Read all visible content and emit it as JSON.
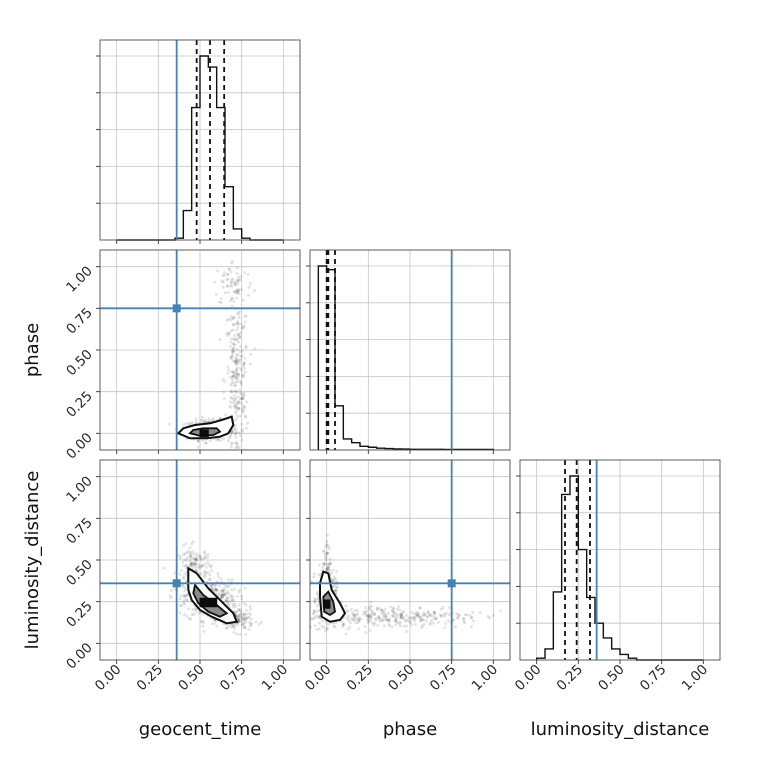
{
  "chart_data": {
    "type": "corner",
    "parameters": [
      "geocent_time",
      "phase",
      "luminosity_distance"
    ],
    "axis_range": [
      -0.1,
      1.1
    ],
    "tick_values": [
      0.0,
      0.25,
      0.5,
      0.75,
      1.0
    ],
    "tick_labels": [
      "0.00",
      "0.25",
      "0.50",
      "0.75",
      "1.00"
    ],
    "truths": {
      "geocent_time": 0.36,
      "phase": 0.75,
      "luminosity_distance": 0.36
    },
    "grid": true,
    "colors": {
      "truth": "#4682b4",
      "histogram": "#000000",
      "samples": "#404040"
    },
    "panels": [
      {
        "id": "geocent_time-hist",
        "row": 0,
        "col": 0,
        "type": "histogram",
        "parameter": "geocent_time",
        "bin_edges": [
          0.0,
          0.05,
          0.1,
          0.15,
          0.2,
          0.25,
          0.3,
          0.35,
          0.4,
          0.45,
          0.5,
          0.55,
          0.6,
          0.65,
          0.7,
          0.75,
          0.8,
          0.85,
          0.9,
          0.95,
          1.0
        ],
        "density": [
          0,
          0,
          0,
          0,
          0,
          0,
          0,
          0.01,
          0.16,
          0.72,
          1.0,
          0.94,
          0.72,
          0.29,
          0.06,
          0.01,
          0,
          0,
          0,
          0
        ],
        "quantiles": [
          0.48,
          0.56,
          0.645
        ]
      },
      {
        "id": "phase-vs-geocent_time",
        "row": 1,
        "col": 0,
        "type": "scatter-contour",
        "x_parameter": "geocent_time",
        "y_parameter": "phase",
        "sample_clusters": [
          {
            "label": "core",
            "x_center": 0.56,
            "y_center": 0.02,
            "x_spread": 0.07,
            "y_spread": 0.03,
            "count": 360
          },
          {
            "label": "plume",
            "x_center": 0.72,
            "y_center": 0.3,
            "x_spread": 0.035,
            "y_spread": 0.26,
            "count": 260
          },
          {
            "label": "top band",
            "x_center": 0.7,
            "y_center": 0.9,
            "x_spread": 0.06,
            "y_spread": 0.07,
            "count": 60
          }
        ],
        "contour_levels": [
          [
            [
              0.37,
              0.0
            ],
            [
              0.44,
              -0.03
            ],
            [
              0.54,
              -0.03
            ],
            [
              0.62,
              -0.02
            ],
            [
              0.67,
              0.0
            ],
            [
              0.7,
              0.05
            ],
            [
              0.69,
              0.1
            ],
            [
              0.63,
              0.08
            ],
            [
              0.56,
              0.06
            ],
            [
              0.47,
              0.05
            ],
            [
              0.4,
              0.03
            ]
          ],
          [
            [
              0.44,
              0.0
            ],
            [
              0.5,
              -0.015
            ],
            [
              0.58,
              -0.01
            ],
            [
              0.62,
              0.01
            ],
            [
              0.6,
              0.03
            ],
            [
              0.52,
              0.03
            ],
            [
              0.46,
              0.02
            ]
          ],
          [
            [
              0.5,
              -0.02
            ],
            [
              0.55,
              -0.02
            ],
            [
              0.55,
              0.02
            ],
            [
              0.5,
              0.02
            ]
          ]
        ]
      },
      {
        "id": "phase-hist",
        "row": 1,
        "col": 1,
        "type": "histogram",
        "parameter": "phase",
        "bin_edges": [
          -0.05,
          0.0,
          0.05,
          0.1,
          0.15,
          0.2,
          0.25,
          0.3,
          0.35,
          0.4,
          0.45,
          0.5,
          0.55,
          0.6,
          0.65,
          0.7,
          0.75,
          0.8,
          0.85,
          0.9,
          0.95,
          1.0
        ],
        "density": [
          1.0,
          0.98,
          0.24,
          0.06,
          0.04,
          0.02,
          0.015,
          0.01,
          0.008,
          0.006,
          0.005,
          0.004,
          0.004,
          0.004,
          0.004,
          0.003,
          0.003,
          0.003,
          0.003,
          0.003,
          0.003
        ],
        "quantiles": [
          0.0,
          0.01,
          0.05
        ]
      },
      {
        "id": "luminosity_distance-vs-geocent_time",
        "row": 2,
        "col": 0,
        "type": "scatter-contour",
        "x_parameter": "geocent_time",
        "y_parameter": "luminosity_distance",
        "sample_clusters": [
          {
            "label": "core",
            "x_center": 0.56,
            "y_center": 0.26,
            "x_spread": 0.08,
            "y_spread": 0.06,
            "count": 360
          },
          {
            "label": "upper tail",
            "x_center": 0.47,
            "y_center": 0.44,
            "x_spread": 0.05,
            "y_spread": 0.07,
            "count": 160
          },
          {
            "label": "lower tail",
            "x_center": 0.72,
            "y_center": 0.14,
            "x_spread": 0.05,
            "y_spread": 0.035,
            "count": 140
          }
        ],
        "contour_levels": [
          [
            [
              0.43,
              0.45
            ],
            [
              0.48,
              0.42
            ],
            [
              0.55,
              0.33
            ],
            [
              0.63,
              0.25
            ],
            [
              0.7,
              0.18
            ],
            [
              0.72,
              0.13
            ],
            [
              0.66,
              0.12
            ],
            [
              0.57,
              0.16
            ],
            [
              0.5,
              0.2
            ],
            [
              0.45,
              0.26
            ],
            [
              0.43,
              0.32
            ]
          ],
          [
            [
              0.47,
              0.35
            ],
            [
              0.52,
              0.29
            ],
            [
              0.6,
              0.23
            ],
            [
              0.66,
              0.18
            ],
            [
              0.62,
              0.16
            ],
            [
              0.55,
              0.19
            ],
            [
              0.49,
              0.24
            ],
            [
              0.46,
              0.3
            ]
          ],
          [
            [
              0.5,
              0.22
            ],
            [
              0.6,
              0.22
            ],
            [
              0.6,
              0.27
            ],
            [
              0.5,
              0.27
            ]
          ]
        ]
      },
      {
        "id": "luminosity_distance-vs-phase",
        "row": 2,
        "col": 1,
        "type": "scatter-contour",
        "x_parameter": "phase",
        "y_parameter": "luminosity_distance",
        "sample_clusters": [
          {
            "label": "core",
            "x_center": 0.0,
            "y_center": 0.27,
            "x_spread": 0.03,
            "y_spread": 0.08,
            "count": 300
          },
          {
            "label": "upper tail",
            "x_center": 0.0,
            "y_center": 0.5,
            "x_spread": 0.012,
            "y_spread": 0.07,
            "count": 40
          },
          {
            "label": "spread",
            "x_center": 0.4,
            "y_center": 0.16,
            "x_spread": 0.27,
            "y_spread": 0.035,
            "count": 300
          }
        ],
        "contour_levels": [
          [
            [
              -0.04,
              0.28
            ],
            [
              -0.03,
              0.16
            ],
            [
              0.02,
              0.13
            ],
            [
              0.08,
              0.14
            ],
            [
              0.11,
              0.18
            ],
            [
              0.08,
              0.24
            ],
            [
              0.03,
              0.32
            ],
            [
              0.01,
              0.42
            ],
            [
              -0.02,
              0.43
            ],
            [
              -0.04,
              0.36
            ]
          ],
          [
            [
              -0.02,
              0.28
            ],
            [
              -0.015,
              0.19
            ],
            [
              0.02,
              0.17
            ],
            [
              0.05,
              0.19
            ],
            [
              0.04,
              0.25
            ],
            [
              0.01,
              0.31
            ]
          ],
          [
            [
              -0.02,
              0.21
            ],
            [
              0.02,
              0.21
            ],
            [
              0.02,
              0.26
            ],
            [
              -0.02,
              0.26
            ]
          ]
        ]
      },
      {
        "id": "luminosity_distance-hist",
        "row": 2,
        "col": 2,
        "type": "histogram",
        "parameter": "luminosity_distance",
        "bin_edges": [
          0.0,
          0.05,
          0.1,
          0.15,
          0.2,
          0.25,
          0.3,
          0.35,
          0.4,
          0.45,
          0.5,
          0.55,
          0.6,
          0.65,
          0.7,
          0.75,
          0.8,
          0.85,
          0.9,
          0.95,
          1.0
        ],
        "density": [
          0.01,
          0.06,
          0.37,
          0.9,
          1.0,
          0.6,
          0.34,
          0.2,
          0.12,
          0.06,
          0.03,
          0.01,
          0,
          0,
          0,
          0,
          0,
          0,
          0,
          0
        ],
        "quantiles": [
          0.17,
          0.24,
          0.32
        ]
      }
    ]
  }
}
